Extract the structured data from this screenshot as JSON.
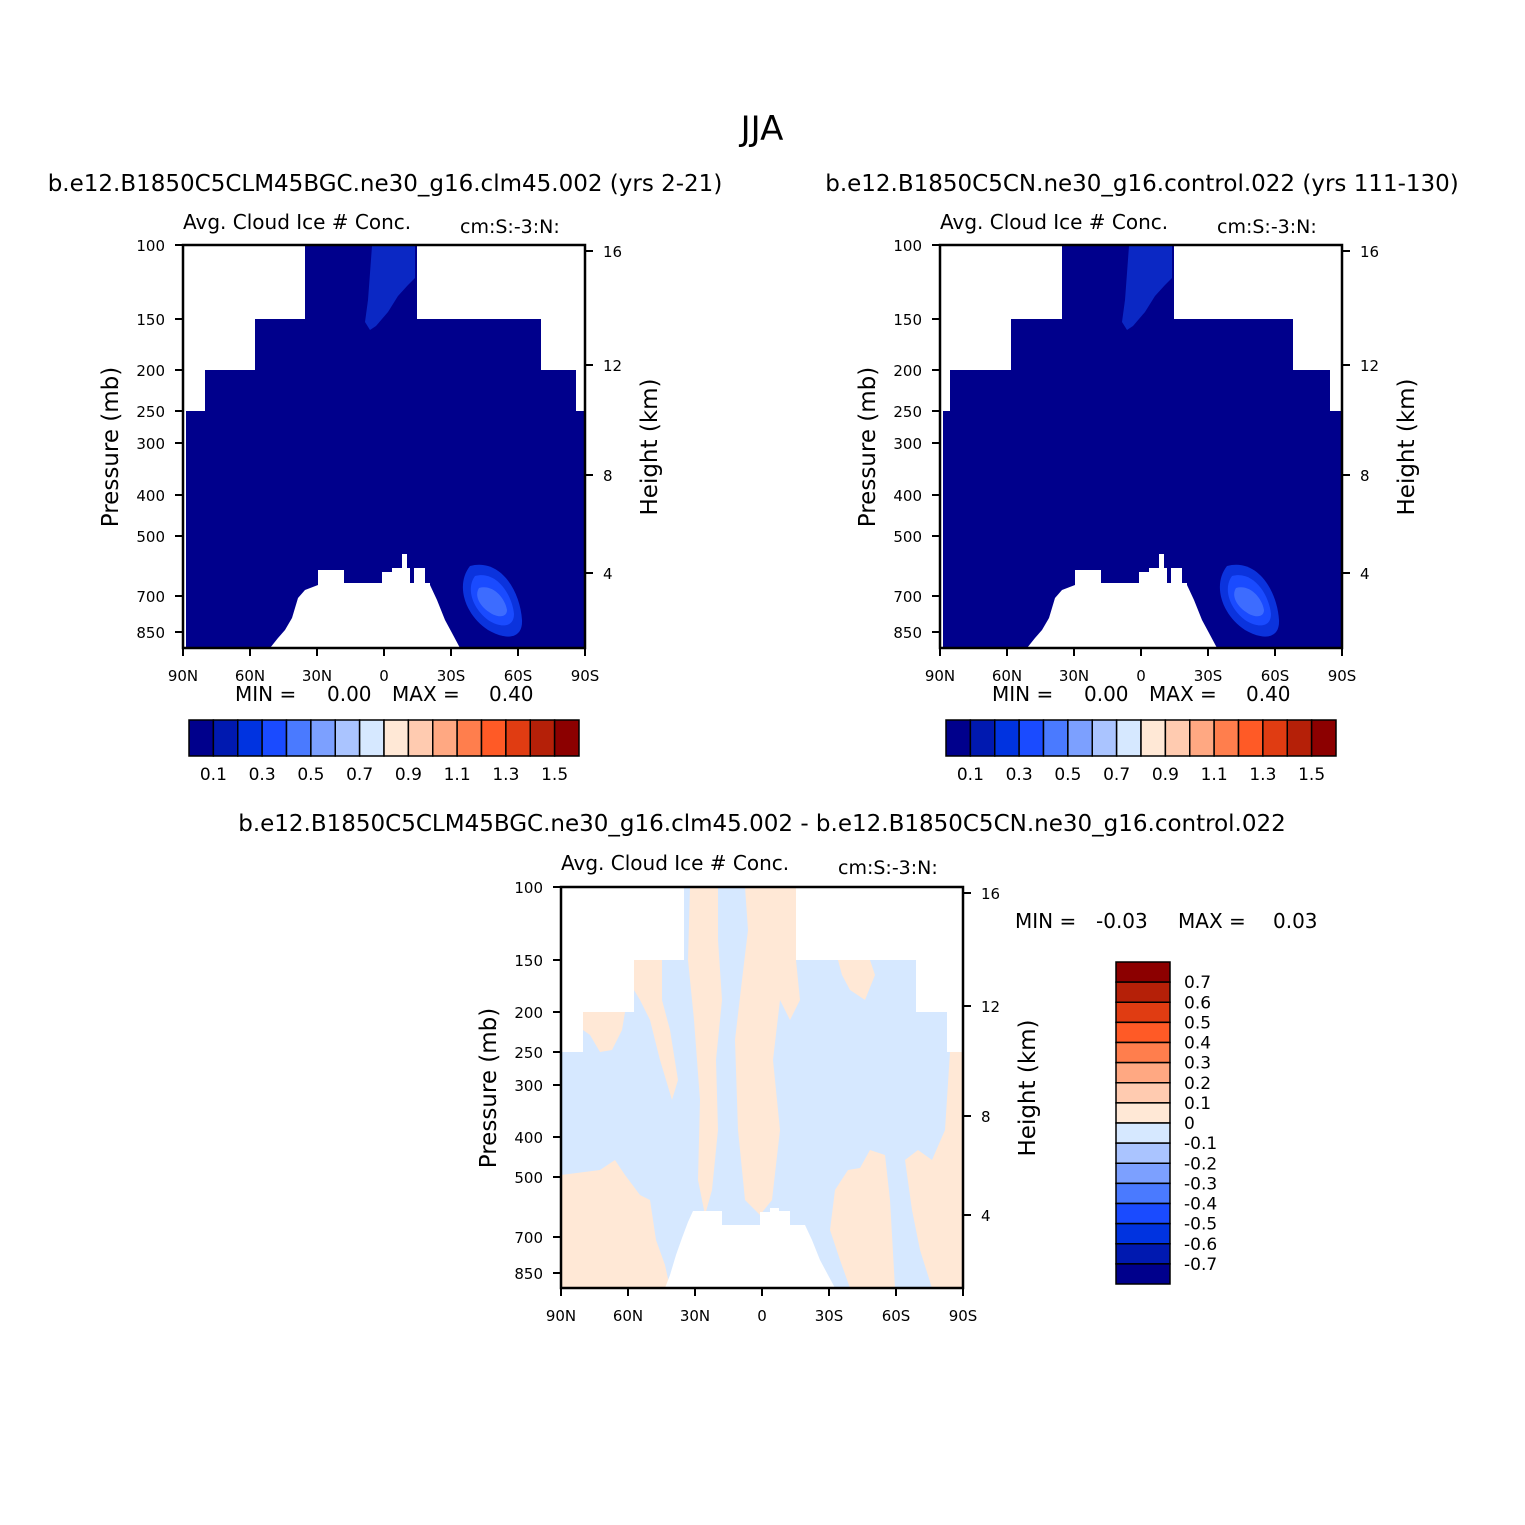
{
  "figure": {
    "title": "JJA"
  },
  "colors": {
    "abs_fill": [
      "#00008c",
      "#0019b0",
      "#0033e0",
      "#1a4bff",
      "#4a7aff",
      "#7ca0ff",
      "#aac4ff",
      "#d6e8ff",
      "#ffe8d6",
      "#ffcbb0",
      "#ffa882",
      "#ff7e4d",
      "#ff5a26",
      "#e03c12",
      "#b52008",
      "#8c0000"
    ],
    "diff_fill": [
      "#00008c",
      "#0019b0",
      "#0033e0",
      "#1a4bff",
      "#4a7aff",
      "#7ca0ff",
      "#aac4ff",
      "#d6e8ff",
      "#ffe8d6",
      "#ffcbb0",
      "#ffa882",
      "#ff7e4d",
      "#ff5a26",
      "#e03c12",
      "#b52008",
      "#8c0000"
    ]
  },
  "chart_data": [
    {
      "id": "panel-left",
      "type": "heatmap",
      "case_label": "b.e12.B1850C5CLM45BGC.ne30_g16.clm45.002 (yrs 2-21)",
      "title": "Avg. Cloud Ice # Conc.",
      "units": "cm:S:-3:N:",
      "xlabel": "",
      "ylabel": "Pressure (mb)",
      "y2label": "Height (km)",
      "x_ticks": [
        "90N",
        "60N",
        "30N",
        "0",
        "30S",
        "60S",
        "90S"
      ],
      "y_ticks": [
        "100",
        "150",
        "200",
        "250",
        "300",
        "400",
        "500",
        "700",
        "850"
      ],
      "y2_ticks": [
        "16",
        "12",
        "8",
        "4"
      ],
      "min_label": "MIN =",
      "min_value": "0.00",
      "max_label": "MAX =",
      "max_value": "0.40",
      "colorbar_labels": [
        "0.1",
        "0.3",
        "0.5",
        "0.7",
        "0.9",
        "1.1",
        "1.3",
        "1.5"
      ],
      "field_range": [
        0.0,
        0.4
      ]
    },
    {
      "id": "panel-right",
      "type": "heatmap",
      "case_label": "b.e12.B1850C5CN.ne30_g16.control.022 (yrs 111-130)",
      "title": "Avg. Cloud Ice # Conc.",
      "units": "cm:S:-3:N:",
      "xlabel": "",
      "ylabel": "Pressure (mb)",
      "y2label": "Height (km)",
      "x_ticks": [
        "90N",
        "60N",
        "30N",
        "0",
        "30S",
        "60S",
        "90S"
      ],
      "y_ticks": [
        "100",
        "150",
        "200",
        "250",
        "300",
        "400",
        "500",
        "700",
        "850"
      ],
      "y2_ticks": [
        "16",
        "12",
        "8",
        "4"
      ],
      "min_label": "MIN =",
      "min_value": "0.00",
      "max_label": "MAX =",
      "max_value": "0.40",
      "colorbar_labels": [
        "0.1",
        "0.3",
        "0.5",
        "0.7",
        "0.9",
        "1.1",
        "1.3",
        "1.5"
      ],
      "field_range": [
        0.0,
        0.4
      ]
    },
    {
      "id": "panel-diff",
      "type": "heatmap",
      "case_label": "b.e12.B1850C5CLM45BGC.ne30_g16.clm45.002 - b.e12.B1850C5CN.ne30_g16.control.022",
      "title": "Avg. Cloud Ice # Conc.",
      "units": "cm:S:-3:N:",
      "xlabel": "",
      "ylabel": "Pressure (mb)",
      "y2label": "Height (km)",
      "x_ticks": [
        "90N",
        "60N",
        "30N",
        "0",
        "30S",
        "60S",
        "90S"
      ],
      "y_ticks": [
        "100",
        "150",
        "200",
        "250",
        "300",
        "400",
        "500",
        "700",
        "850"
      ],
      "y2_ticks": [
        "16",
        "12",
        "8",
        "4"
      ],
      "min_label": "MIN =",
      "min_value": "-0.03",
      "max_label": "MAX =",
      "max_value": "0.03",
      "colorbar_labels": [
        "0.7",
        "0.6",
        "0.5",
        "0.4",
        "0.3",
        "0.2",
        "0.1",
        "0",
        "-0.1",
        "-0.2",
        "-0.3",
        "-0.4",
        "-0.5",
        "-0.6",
        "-0.7"
      ],
      "field_range": [
        -0.03,
        0.03
      ]
    }
  ]
}
